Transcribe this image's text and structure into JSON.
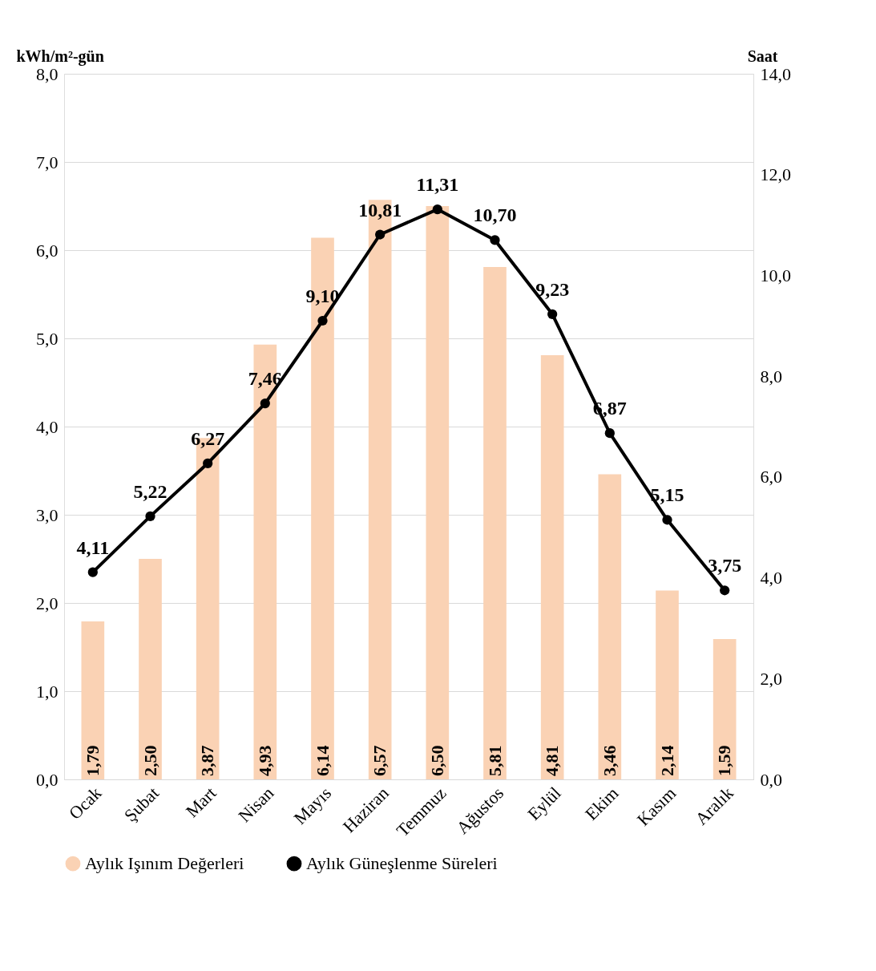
{
  "chart_data": {
    "type": "bar",
    "ylabel": "kWh/m²-gün",
    "y2label": "Saat",
    "categories": [
      "Ocak",
      "Şubat",
      "Mart",
      "Nisan",
      "Mayıs",
      "Haziran",
      "Temmuz",
      "Ağustos",
      "Eylül",
      "Ekim",
      "Kasım",
      "Aralık"
    ],
    "series": [
      {
        "name": "Aylık Işınım Değerleri",
        "color": "#fad2b4",
        "values": [
          1.79,
          2.5,
          3.87,
          4.93,
          6.14,
          6.57,
          6.5,
          5.81,
          4.81,
          3.46,
          2.14,
          1.59
        ],
        "value_labels": [
          "1,79",
          "2,50",
          "3,87",
          "4,93",
          "6,14",
          "6,57",
          "6,50",
          "5,81",
          "4,81",
          "3,46",
          "2,14",
          "1,59"
        ]
      },
      {
        "name": "Aylık Güneşlenme Süreleri",
        "type": "line",
        "axis": "y2",
        "color": "#000000",
        "marker": "circle",
        "values": [
          4.11,
          5.22,
          6.27,
          7.46,
          9.1,
          10.81,
          11.31,
          10.7,
          9.23,
          6.87,
          5.15,
          3.75
        ],
        "value_labels": [
          "4,11",
          "5,22",
          "6,27",
          "7,46",
          "9,10",
          "10,81",
          "11,31",
          "10,70",
          "9,23",
          "6,87",
          "5,15",
          "3,75"
        ]
      }
    ],
    "ylim": [
      0,
      8
    ],
    "yticks": [
      {
        "value": 0,
        "label": "0,0"
      },
      {
        "value": 1,
        "label": "1,0"
      },
      {
        "value": 2,
        "label": "2,0"
      },
      {
        "value": 3,
        "label": "3,0"
      },
      {
        "value": 4,
        "label": "4,0"
      },
      {
        "value": 5,
        "label": "5,0"
      },
      {
        "value": 6,
        "label": "6,0"
      },
      {
        "value": 7,
        "label": "7,0"
      },
      {
        "value": 8,
        "label": "8,0"
      }
    ],
    "y2lim": [
      0,
      14
    ],
    "y2ticks": [
      {
        "value": 0,
        "label": "0,0"
      },
      {
        "value": 2,
        "label": "2,0"
      },
      {
        "value": 4,
        "label": "4,0"
      },
      {
        "value": 6,
        "label": "6,0"
      },
      {
        "value": 8,
        "label": "8,0"
      },
      {
        "value": 10,
        "label": "10,0"
      },
      {
        "value": 12,
        "label": "12,0"
      },
      {
        "value": 14,
        "label": "14,0"
      }
    ],
    "grid": "y",
    "legend": "bottom"
  }
}
